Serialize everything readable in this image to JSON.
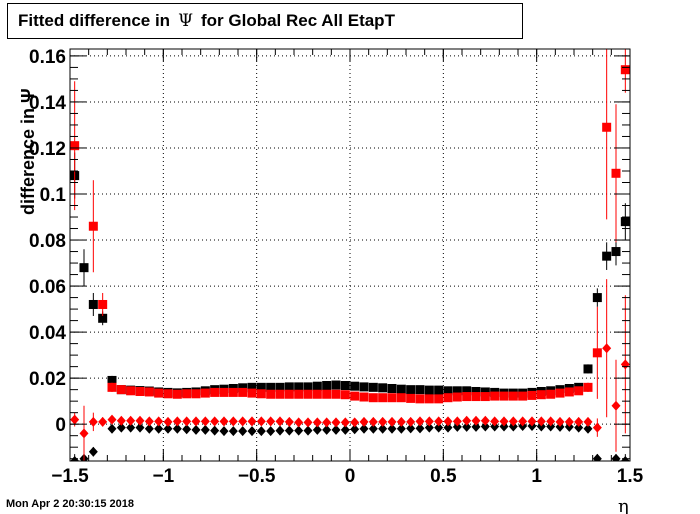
{
  "title": {
    "prefix": "Fitted difference in",
    "symbol": "Ψ",
    "suffix": "for Global Rec All EtapT"
  },
  "footer": "Mon Apr  2 20:30:15 2018",
  "chart_data": {
    "type": "scatter",
    "xlabel": "η",
    "ylabel": "difference in Ψ",
    "xlim": [
      -1.5,
      1.5
    ],
    "ylim": [
      -0.016,
      0.163
    ],
    "x_ticks": [
      {
        "value": -1.5,
        "label": "−1.5"
      },
      {
        "value": -1,
        "label": "−1"
      },
      {
        "value": -0.5,
        "label": "−0.5"
      },
      {
        "value": 0,
        "label": "0"
      },
      {
        "value": 0.5,
        "label": "0.5"
      },
      {
        "value": 1,
        "label": "1"
      },
      {
        "value": 1.5,
        "label": "1.5"
      }
    ],
    "y_ticks": [
      {
        "value": 0,
        "label": "0"
      },
      {
        "value": 0.02,
        "label": "0.02"
      },
      {
        "value": 0.04,
        "label": "0.04"
      },
      {
        "value": 0.06,
        "label": "0.06"
      },
      {
        "value": 0.08,
        "label": "0.08"
      },
      {
        "value": 0.1,
        "label": "0.1"
      },
      {
        "value": 0.12,
        "label": "0.12"
      },
      {
        "value": 0.14,
        "label": "0.14"
      },
      {
        "value": 0.16,
        "label": "0.16"
      }
    ],
    "grid": true,
    "x": [
      -1.475,
      -1.425,
      -1.375,
      -1.325,
      -1.275,
      -1.225,
      -1.175,
      -1.125,
      -1.075,
      -1.025,
      -0.975,
      -0.925,
      -0.875,
      -0.825,
      -0.775,
      -0.725,
      -0.675,
      -0.625,
      -0.575,
      -0.525,
      -0.475,
      -0.425,
      -0.375,
      -0.325,
      -0.275,
      -0.225,
      -0.175,
      -0.125,
      -0.075,
      -0.025,
      0.025,
      0.075,
      0.125,
      0.175,
      0.225,
      0.275,
      0.325,
      0.375,
      0.425,
      0.475,
      0.525,
      0.575,
      0.625,
      0.675,
      0.725,
      0.775,
      0.825,
      0.875,
      0.925,
      0.975,
      1.025,
      1.075,
      1.125,
      1.175,
      1.225,
      1.275,
      1.325,
      1.375,
      1.425,
      1.475
    ],
    "series": [
      {
        "color": "#000000",
        "marker": "square",
        "values": [
          0.108,
          0.068,
          0.052,
          0.046,
          0.019,
          0.015,
          0.0148,
          0.0146,
          0.0144,
          0.014,
          0.0138,
          0.0136,
          0.0138,
          0.014,
          0.0145,
          0.015,
          0.0152,
          0.0155,
          0.0158,
          0.016,
          0.016,
          0.016,
          0.016,
          0.0162,
          0.0162,
          0.0162,
          0.0165,
          0.0168,
          0.017,
          0.0168,
          0.0165,
          0.0162,
          0.016,
          0.0158,
          0.0155,
          0.0152,
          0.015,
          0.015,
          0.0148,
          0.0148,
          0.0145,
          0.0145,
          0.0145,
          0.0142,
          0.014,
          0.0138,
          0.0135,
          0.0135,
          0.0135,
          0.0138,
          0.0142,
          0.0145,
          0.015,
          0.0155,
          0.016,
          0.024,
          0.055,
          0.073,
          0.075,
          0.088
        ],
        "errors": [
          0.01,
          0.008,
          0.005,
          0.003,
          0.002,
          0.001,
          0.001,
          0.001,
          0.001,
          0.001,
          0.001,
          0.001,
          0.001,
          0.001,
          0.001,
          0.001,
          0.001,
          0.001,
          0.001,
          0.001,
          0.001,
          0.001,
          0.001,
          0.001,
          0.001,
          0.001,
          0.001,
          0.001,
          0.001,
          0.001,
          0.001,
          0.001,
          0.001,
          0.001,
          0.001,
          0.001,
          0.001,
          0.001,
          0.001,
          0.001,
          0.001,
          0.001,
          0.001,
          0.001,
          0.001,
          0.001,
          0.001,
          0.001,
          0.001,
          0.001,
          0.001,
          0.001,
          0.001,
          0.001,
          0.001,
          0.002,
          0.004,
          0.006,
          0.006,
          0.008
        ]
      },
      {
        "color": "#ff0000",
        "marker": "square",
        "values": [
          0.121,
          null,
          0.086,
          0.052,
          0.016,
          0.015,
          0.0145,
          0.0142,
          0.014,
          0.0135,
          0.0132,
          0.013,
          0.0132,
          0.0132,
          0.0135,
          0.0138,
          0.0138,
          0.0138,
          0.0138,
          0.0135,
          0.0132,
          0.013,
          0.013,
          0.013,
          0.013,
          0.013,
          0.013,
          0.013,
          0.013,
          0.0128,
          0.0122,
          0.0118,
          0.0115,
          0.0115,
          0.0115,
          0.0115,
          0.0112,
          0.011,
          0.011,
          0.011,
          0.0115,
          0.0118,
          0.012,
          0.012,
          0.012,
          0.0122,
          0.0122,
          0.0122,
          0.0122,
          0.0125,
          0.0128,
          0.013,
          0.0135,
          0.014,
          0.0145,
          0.016,
          0.031,
          0.129,
          0.109,
          0.154
        ],
        "errors": [
          0.028,
          0,
          0.02,
          0.005,
          0.002,
          0.001,
          0.001,
          0.001,
          0.001,
          0.001,
          0.001,
          0.001,
          0.001,
          0.001,
          0.001,
          0.001,
          0.001,
          0.001,
          0.001,
          0.001,
          0.001,
          0.001,
          0.001,
          0.001,
          0.001,
          0.001,
          0.001,
          0.001,
          0.001,
          0.001,
          0.001,
          0.001,
          0.001,
          0.001,
          0.001,
          0.001,
          0.001,
          0.001,
          0.001,
          0.001,
          0.001,
          0.001,
          0.001,
          0.001,
          0.001,
          0.001,
          0.001,
          0.001,
          0.001,
          0.001,
          0.001,
          0.001,
          0.001,
          0.001,
          0.001,
          0.002,
          0.02,
          0.04,
          0.03,
          0.01
        ]
      },
      {
        "color": "#000000",
        "marker": "diamond",
        "values": [
          -0.016,
          -0.015,
          -0.012,
          null,
          -0.002,
          -0.0015,
          -0.0015,
          -0.0015,
          -0.002,
          -0.002,
          -0.002,
          -0.002,
          -0.0022,
          -0.0025,
          -0.0025,
          -0.0028,
          -0.003,
          -0.003,
          -0.003,
          -0.003,
          -0.003,
          -0.003,
          -0.0028,
          -0.0028,
          -0.0028,
          -0.0028,
          -0.0025,
          -0.0025,
          -0.0025,
          -0.0025,
          -0.0022,
          -0.002,
          -0.002,
          -0.002,
          -0.002,
          -0.002,
          -0.0018,
          -0.0018,
          -0.0015,
          -0.0015,
          -0.0015,
          -0.0012,
          -0.0012,
          -0.0012,
          -0.001,
          -0.001,
          -0.001,
          -0.001,
          -0.0008,
          -0.0008,
          -0.001,
          -0.001,
          -0.0012,
          -0.0012,
          -0.0015,
          -0.002,
          -0.015,
          null,
          -0.015,
          -0.016
        ],
        "errors": [
          0.003,
          0.002,
          0.002,
          0,
          0.0005,
          0.0005,
          0.0005,
          0.0005,
          0.0005,
          0.0005,
          0.0005,
          0.0005,
          0.0005,
          0.0005,
          0.0005,
          0.0005,
          0.0005,
          0.0005,
          0.0005,
          0.0005,
          0.0005,
          0.0005,
          0.0005,
          0.0005,
          0.0005,
          0.0005,
          0.0005,
          0.0005,
          0.0005,
          0.0005,
          0.0005,
          0.0005,
          0.0005,
          0.0005,
          0.0005,
          0.0005,
          0.0005,
          0.0005,
          0.0005,
          0.0005,
          0.0005,
          0.0005,
          0.0005,
          0.0005,
          0.0005,
          0.0005,
          0.0005,
          0.0005,
          0.0005,
          0.0005,
          0.0005,
          0.0005,
          0.0005,
          0.0005,
          0.0005,
          0.0005,
          0.002,
          0,
          0.002,
          0.003
        ]
      },
      {
        "color": "#ff0000",
        "marker": "diamond",
        "values": [
          0.002,
          -0.004,
          0.001,
          0.001,
          0.002,
          0.0015,
          0.0015,
          0.0015,
          0.0012,
          0.0012,
          0.001,
          0.0012,
          0.0012,
          0.0012,
          0.0012,
          0.0012,
          0.0012,
          0.0012,
          0.0012,
          0.0012,
          0.0012,
          0.0012,
          0.0012,
          0.001,
          0.0008,
          0.0008,
          0.0008,
          0.0008,
          0.0008,
          0.0008,
          0.0008,
          0.001,
          0.001,
          0.001,
          0.001,
          0.001,
          0.001,
          0.0012,
          0.0012,
          0.0012,
          0.0012,
          0.0012,
          0.0015,
          0.0015,
          0.0015,
          0.0012,
          0.0012,
          0.0012,
          0.0012,
          0.0012,
          0.0012,
          0.0012,
          0.001,
          0.001,
          0.001,
          0.001,
          -0.0015,
          0.033,
          0.008,
          0.026
        ],
        "errors": [
          0.003,
          0.012,
          0.004,
          0.002,
          0.0005,
          0.0005,
          0.0005,
          0.0005,
          0.0005,
          0.0005,
          0.0005,
          0.0005,
          0.0005,
          0.0005,
          0.0005,
          0.0005,
          0.0005,
          0.0005,
          0.0005,
          0.0005,
          0.0005,
          0.0005,
          0.0005,
          0.0005,
          0.0005,
          0.0005,
          0.0005,
          0.0005,
          0.0005,
          0.0005,
          0.0005,
          0.0005,
          0.0005,
          0.0005,
          0.0005,
          0.0005,
          0.0005,
          0.0005,
          0.0005,
          0.0005,
          0.0005,
          0.0005,
          0.0005,
          0.0005,
          0.0005,
          0.0005,
          0.0005,
          0.0005,
          0.0005,
          0.0005,
          0.0005,
          0.0005,
          0.0005,
          0.0005,
          0.0005,
          0.0005,
          0.004,
          0.03,
          0.02,
          0.03
        ]
      }
    ]
  }
}
